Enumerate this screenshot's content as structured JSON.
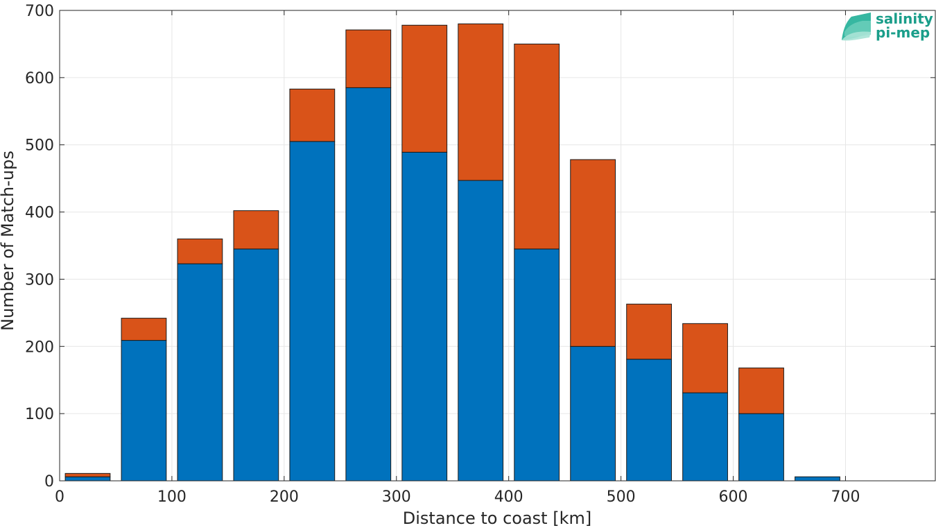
{
  "chart_data": {
    "type": "bar",
    "stacked": true,
    "bar_width_km": 40,
    "x": [
      25,
      75,
      125,
      175,
      225,
      275,
      325,
      375,
      425,
      475,
      525,
      575,
      625,
      675
    ],
    "series": [
      {
        "color": "#0072BD",
        "values": [
          6,
          209,
          323,
          345,
          505,
          585,
          489,
          447,
          345,
          200,
          181,
          131,
          100,
          6
        ]
      },
      {
        "color": "#D95319",
        "values": [
          5,
          33,
          37,
          57,
          78,
          86,
          189,
          233,
          305,
          278,
          82,
          103,
          68,
          0
        ]
      }
    ],
    "xlabel": "Distance to coast [km]",
    "ylabel": "Number of Match-ups",
    "xlim": [
      0,
      780
    ],
    "ylim": [
      0,
      700
    ],
    "xticks": [
      0,
      100,
      200,
      300,
      400,
      500,
      600,
      700
    ],
    "yticks": [
      0,
      100,
      200,
      300,
      400,
      500,
      600,
      700
    ],
    "grid": true
  },
  "logo": {
    "line1": "salinity",
    "line2": "pi-mep"
  },
  "colors": {
    "grid": "#e6e6e6",
    "axis": "#262626",
    "bar_edge": "#1a1a1a",
    "logo_text": "#1a9e8a",
    "logo_mark": "#2bb39c"
  }
}
